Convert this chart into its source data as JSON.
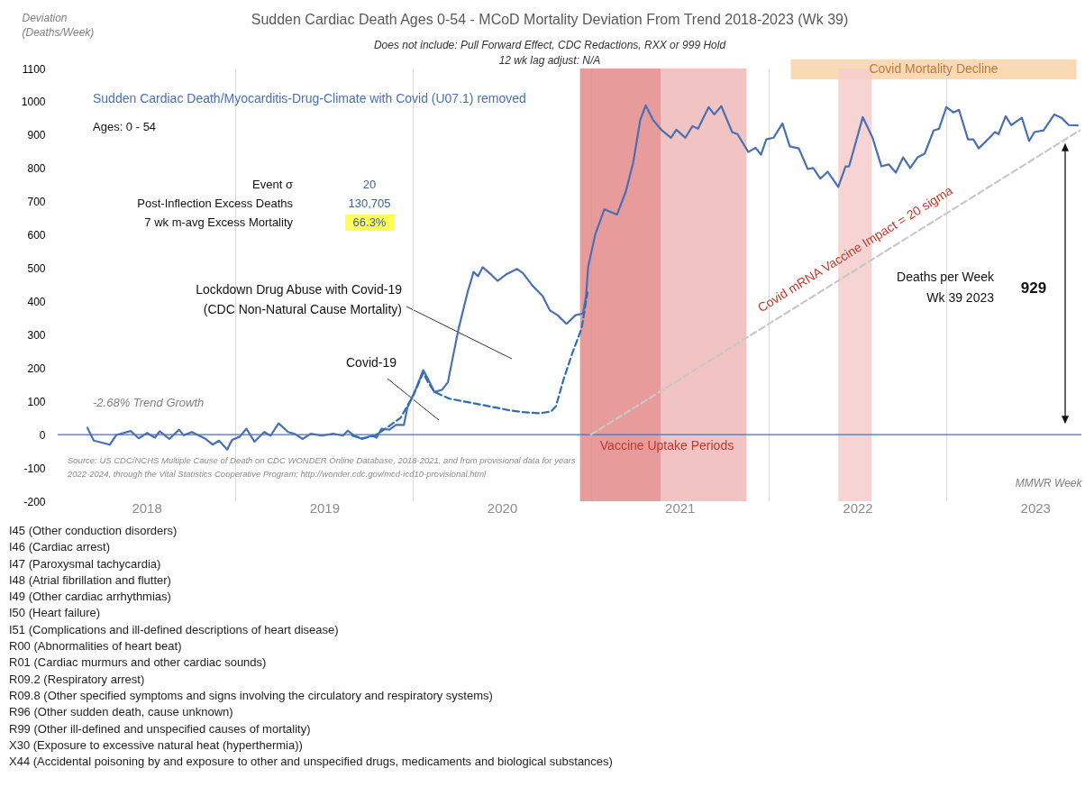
{
  "chart_data": {
    "type": "line",
    "title": "Sudden Cardiac Death Ages 0-54 - MCoD Mortality Deviation From Trend  2018-2023 (Wk 39)",
    "subtitle": "Does not include: Pull Forward Effect,  CDC Redactions, RXX or 999 Hold\n12 wk lag adjust: N/A",
    "ylabel": "Deviation\n(Deaths/Week)",
    "xlabel": "MMWR Week",
    "xlim": [
      2018,
      2023.76
    ],
    "ylim": [
      -200,
      1100
    ],
    "xticks": [
      {
        "value": 2018.5,
        "label": "2018"
      },
      {
        "value": 2019,
        "label": null
      },
      {
        "value": 2019.5,
        "label": "2019"
      },
      {
        "value": 2020,
        "label": null
      },
      {
        "value": 2020.5,
        "label": "2020"
      },
      {
        "value": 2021,
        "label": null
      },
      {
        "value": 2021.5,
        "label": "2021"
      },
      {
        "value": 2022,
        "label": null
      },
      {
        "value": 2022.5,
        "label": "2022"
      },
      {
        "value": 2023,
        "label": null
      },
      {
        "value": 2023.5,
        "label": "2023"
      }
    ],
    "yticks": [
      -200,
      -100,
      0,
      100,
      200,
      300,
      400,
      500,
      600,
      700,
      800,
      900,
      1000,
      1100
    ],
    "grid": "x",
    "series": [
      {
        "name": "Sudden Cardiac Death/Myocarditis-Drug-Climate with Covid (U07.1) removed",
        "color": "#4a70b4",
        "x": [
          2018.167,
          2018.203,
          2018.294,
          2018.33,
          2018.411,
          2018.456,
          2018.502,
          2018.547,
          2018.574,
          2018.628,
          2018.683,
          2018.709,
          2018.755,
          2018.827,
          2018.872,
          2018.908,
          2018.954,
          2018.981,
          2019.025,
          2019.062,
          2019.107,
          2019.162,
          2019.198,
          2019.243,
          2019.297,
          2019.334,
          2019.379,
          2019.424,
          2019.487,
          2019.55,
          2019.605,
          2019.632,
          2019.668,
          2019.713,
          2019.768,
          2019.794,
          2019.822,
          2019.867,
          2019.903,
          2019.948,
          2019.967,
          2020.012,
          2020.057,
          2020.084,
          2020.12,
          2020.163,
          2020.196,
          2020.222,
          2020.256,
          2020.306,
          2020.34,
          2020.365,
          2020.391,
          2020.441,
          2020.475,
          2020.525,
          2020.585,
          2020.619,
          2020.669,
          2020.728,
          2020.77,
          2020.813,
          2020.863,
          2020.914,
          2020.956,
          2020.973,
          2020.985,
          2021.025,
          2021.076,
          2021.147,
          2021.197,
          2021.238,
          2021.278,
          2021.309,
          2021.349,
          2021.4,
          2021.451,
          2021.481,
          2021.532,
          2021.572,
          2021.603,
          2021.663,
          2021.694,
          2021.734,
          2021.795,
          2021.825,
          2021.886,
          2021.927,
          2021.957,
          2021.987,
          2022.028,
          2022.078,
          2022.119,
          2022.17,
          2022.22,
          2022.251,
          2022.291,
          2022.332,
          2022.392,
          2022.433,
          2022.453,
          2022.53,
          2022.585,
          2022.635,
          2022.676,
          2022.716,
          2022.757,
          2022.797,
          2022.838,
          2022.878,
          2022.929,
          2022.959,
          2023.0,
          2023.041,
          2023.071,
          2023.122,
          2023.152,
          2023.182,
          2023.243,
          2023.273,
          2023.294,
          2023.334,
          2023.365,
          2023.425,
          2023.466,
          2023.496,
          2023.547,
          2023.608,
          2023.648,
          2023.689,
          2023.739
        ],
        "values": [
          21,
          -18,
          -30,
          -1,
          11,
          -11,
          5,
          -9,
          10,
          -13,
          15,
          -2,
          8,
          -11,
          -30,
          -18,
          -45,
          -16,
          -6,
          18,
          -21,
          8,
          -3,
          34,
          8,
          2,
          -13,
          3,
          -3,
          3,
          -3,
          12,
          -3,
          -13,
          -3,
          -9,
          18,
          15,
          29,
          29,
          80,
          133,
          194,
          167,
          128,
          135,
          158,
          229,
          319,
          427,
          489,
          476,
          503,
          480,
          462,
          482,
          498,
          485,
          449,
          417,
          373,
          359,
          333,
          359,
          364,
          417,
          505,
          602,
          677,
          661,
          731,
          817,
          946,
          989,
          946,
          914,
          892,
          916,
          892,
          927,
          919,
          984,
          962,
          987,
          909,
          903,
          849,
          862,
          841,
          887,
          892,
          935,
          866,
          860,
          798,
          801,
          769,
          790,
          744,
          806,
          806,
          954,
          892,
          806,
          812,
          787,
          833,
          801,
          833,
          844,
          914,
          919,
          984,
          968,
          976,
          887,
          887,
          860,
          892,
          909,
          903,
          957,
          930,
          952,
          882,
          909,
          914,
          962,
          952,
          930,
          929
        ]
      },
      {
        "name": "Covid-19",
        "color": "#2e6fb0",
        "line_style": "dashed",
        "x": [
          2019.658,
          2019.713,
          2019.785,
          2019.858,
          2019.93,
          2020.002,
          2020.057,
          2020.084,
          2020.12,
          2020.205,
          2020.374,
          2020.543,
          2020.61,
          2020.711,
          2020.777,
          2020.804,
          2020.847,
          2020.897,
          2020.948,
          2020.981
        ],
        "values": [
          -3,
          -11,
          -3,
          23,
          51,
          119,
          186,
          157,
          128,
          108,
          91,
          73,
          68,
          64,
          70,
          86,
          167,
          247,
          319,
          427
        ]
      },
      {
        "name": "Covid mRNA Vaccine Impact = 20 sigma",
        "color": "#c8c8c8",
        "line_style": "dashed",
        "x": [
          2021.0,
          2023.75
        ],
        "values": [
          0,
          914
        ]
      }
    ],
    "ref_lines": [
      {
        "axis": "y",
        "value": 0,
        "color": "#4a70b4"
      }
    ],
    "bands": [
      {
        "axis": "x",
        "from": 2020.939,
        "to": 2021.395,
        "color": "#e38a8a"
      },
      {
        "axis": "x",
        "from": 2021.395,
        "to": 2021.876,
        "color": "#f0b8b8"
      },
      {
        "axis": "x",
        "from": 2022.392,
        "to": 2022.58,
        "color": "#f5cccc"
      }
    ],
    "annotations": [
      "Ages: 0 - 54",
      "Event σ",
      "20",
      "Post-Inflection Excess Deaths",
      "130,705",
      "7 wk m-avg Excess Mortality",
      "66.3%",
      "Lockdown Drug Abuse with Covid-19\n(CDC Non-Natural Cause Mortality)",
      "-2.68% Trend Growth",
      "Covid Mortality Decline",
      "Vaccine Uptake Periods",
      "Deaths per Week\nWk 39 2023",
      "929",
      "Source: US CDC/NCHS Multiple Cause of Death on CDC WONDER Online Database, 2018-2021, and from provisional data for years\n2022-2024, through the Vital Statistics Cooperative Program; http://wonder.cdc.gov/mcd-icd10-provisional.html",
      "I45 (Other conduction disorders)",
      "I46 (Cardiac arrest)",
      "I47 (Paroxysmal tachycardia)",
      "I48 (Atrial fibrillation and flutter)",
      "I49 (Other cardiac arrhythmias)",
      "I50 (Heart failure)",
      "I51 (Complications and ill-defined descriptions of heart disease)",
      "R00 (Abnormalities of heart beat)",
      "R01 (Cardiac murmurs and other cardiac sounds)",
      "R09.2 (Respiratory arrest)",
      "R09.8 (Other specified symptoms and signs involving the circulatory and respiratory systems)",
      "R96 (Other sudden death, cause unknown)",
      "R99 (Other ill-defined and unspecified causes of mortality)",
      "X30 (Exposure to excessive natural heat (hyperthermia))",
      "X44 (Accidental poisoning by and exposure to other and unspecified drugs, medicaments and biological substances)"
    ]
  }
}
